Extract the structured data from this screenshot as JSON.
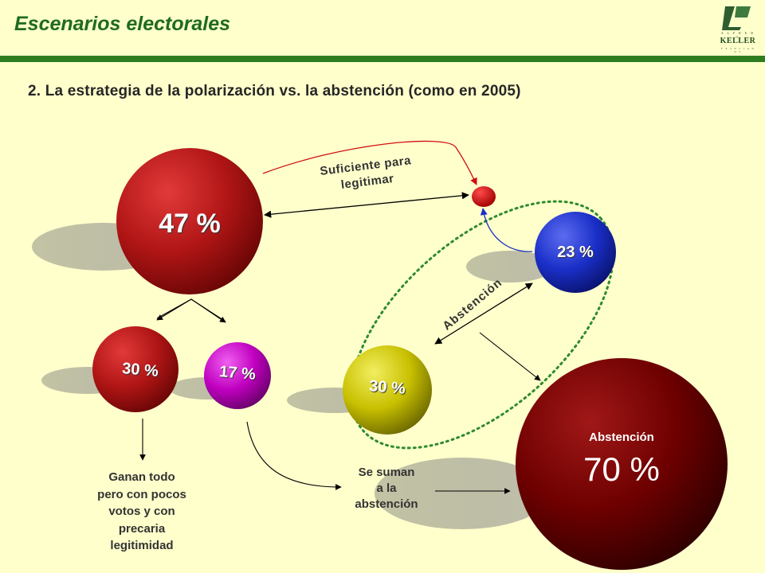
{
  "header": {
    "title": "Escenarios electorales",
    "logo": {
      "top": "A L F R E D O",
      "name": "KELLER",
      "bottom": "Y A S O C I A D O S"
    }
  },
  "subtitle": "2. La estrategia de la polarización vs. la abstención (como en 2005)",
  "spheres": {
    "s47": {
      "label": "47 %",
      "color": "#b01515"
    },
    "s23": {
      "label": "23 %",
      "color": "#1a2fc8"
    },
    "s30a": {
      "label": "30 %",
      "color": "#a81010"
    },
    "s17": {
      "label": "17 %",
      "color": "#c000c0"
    },
    "s30b": {
      "label": "30 %",
      "color": "#c8c000"
    },
    "s70": {
      "caption": "Abstención",
      "label": "70 %",
      "color": "#6e0000"
    }
  },
  "labels": {
    "suficiente": "Suficiente para\nlegitimar",
    "abstencion_diag": "Abstención",
    "ganan": "Ganan todo\npero con pocos\nvotos y con\nprecaria\nlegitimidad",
    "se_suman": "Se suman\na la\nabstención"
  },
  "colors": {
    "background": "#ffffcc",
    "accent_green": "#2e7d1f",
    "ellipse": "#2e8b2e"
  }
}
